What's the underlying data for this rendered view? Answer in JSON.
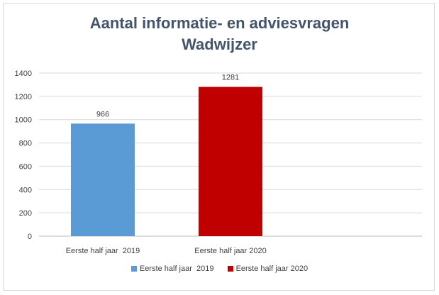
{
  "chart_data": {
    "type": "bar",
    "title": "Aantal informatie- en adviesvragen Wadwijzer",
    "title_lines": [
      "Aantal informatie- en adviesvragen",
      "Wadwijzer"
    ],
    "categories": [
      "Eerste half jaar  2019",
      "Eerste half jaar 2020"
    ],
    "values": [
      966,
      1281
    ],
    "data_labels": [
      "966",
      "1281"
    ],
    "colors": [
      "#5b9bd5",
      "#c00000"
    ],
    "yticks": [
      "0",
      "200",
      "400",
      "600",
      "800",
      "1000",
      "1200",
      "1400"
    ],
    "ylim": [
      0,
      1400
    ],
    "grid": true,
    "xlabel": "",
    "ylabel": "",
    "legend": {
      "position": "bottom",
      "entries": [
        {
          "label": "Eerste half jaar  2019",
          "color": "#5b9bd5"
        },
        {
          "label": "Eerste half jaar 2020",
          "color": "#c00000"
        }
      ]
    }
  }
}
